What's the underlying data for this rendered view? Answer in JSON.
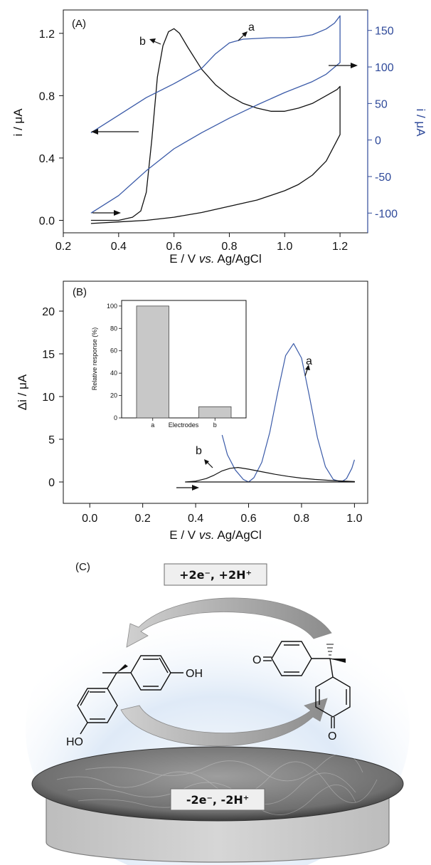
{
  "chart_data": [
    {
      "panel": "(A)",
      "type": "line",
      "xlabel_parts": [
        "E / V ",
        "vs.",
        " Ag/AgCl"
      ],
      "ylabel": "i / μA",
      "ylabel_right": "i / μA",
      "xlim": [
        0.2,
        1.3
      ],
      "ylim": [
        -0.08,
        1.35
      ],
      "ylim_right": [
        -127,
        178
      ],
      "xticks": [
        "0.2",
        "0.4",
        "0.6",
        "0.8",
        "1.0",
        "1.2"
      ],
      "yticks": [
        "0.0",
        "0.4",
        "0.8",
        "1.2"
      ],
      "yticks_right": [
        "-100",
        "-50",
        "0",
        "50",
        "100",
        "150"
      ],
      "grid": false,
      "series": [
        {
          "name": "b",
          "axis": "left",
          "color": "#111111",
          "x": [
            0.3,
            0.4,
            0.45,
            0.48,
            0.5,
            0.52,
            0.54,
            0.56,
            0.58,
            0.6,
            0.62,
            0.65,
            0.7,
            0.75,
            0.8,
            0.85,
            0.9,
            0.95,
            1.0,
            1.05,
            1.1,
            1.15,
            1.19,
            1.2,
            1.2,
            1.15,
            1.1,
            1.05,
            1.0,
            0.95,
            0.9,
            0.85,
            0.8,
            0.7,
            0.6,
            0.5,
            0.4,
            0.3
          ],
          "y": [
            0.0,
            0.0,
            0.02,
            0.06,
            0.18,
            0.52,
            0.92,
            1.12,
            1.21,
            1.23,
            1.2,
            1.11,
            0.97,
            0.87,
            0.8,
            0.75,
            0.72,
            0.7,
            0.7,
            0.72,
            0.75,
            0.8,
            0.84,
            0.86,
            0.55,
            0.38,
            0.29,
            0.23,
            0.19,
            0.16,
            0.13,
            0.11,
            0.09,
            0.05,
            0.02,
            0.0,
            -0.01,
            -0.02
          ]
        },
        {
          "name": "a",
          "axis": "right",
          "color": "#3a5aa8",
          "x": [
            0.3,
            0.4,
            0.5,
            0.6,
            0.7,
            0.75,
            0.8,
            0.85,
            0.9,
            0.95,
            1.0,
            1.05,
            1.1,
            1.15,
            1.18,
            1.2,
            1.2,
            1.15,
            1.1,
            1.0,
            0.9,
            0.8,
            0.7,
            0.6,
            0.5,
            0.4,
            0.3
          ],
          "y": [
            10,
            34,
            58,
            77,
            98,
            118,
            133,
            138,
            139,
            140,
            140,
            141,
            144,
            152,
            160,
            170,
            106,
            90,
            80,
            65,
            48,
            30,
            10,
            -12,
            -42,
            -76,
            -100
          ]
        }
      ],
      "annotations": [
        {
          "text": "a",
          "target": "series-a"
        },
        {
          "text": "b",
          "target": "series-b"
        }
      ]
    },
    {
      "panel": "(B)",
      "type": "line",
      "xlabel_parts": [
        "E / V ",
        "vs.",
        " Ag/AgCl"
      ],
      "ylabel": "Δi / μA",
      "xlim": [
        -0.1,
        1.05
      ],
      "ylim": [
        -2.5,
        23.5
      ],
      "xticks": [
        "0.0",
        "0.2",
        "0.4",
        "0.6",
        "0.8",
        "1.0"
      ],
      "yticks": [
        "0",
        "5",
        "10",
        "15",
        "20"
      ],
      "grid": false,
      "series": [
        {
          "name": "a",
          "color": "#3a5aa8",
          "x": [
            0.5,
            0.52,
            0.55,
            0.58,
            0.6,
            0.62,
            0.65,
            0.68,
            0.71,
            0.74,
            0.77,
            0.8,
            0.83,
            0.86,
            0.89,
            0.92,
            0.95,
            0.97,
            0.99,
            1.0
          ],
          "y": [
            5.5,
            3.2,
            1.4,
            0.3,
            0.0,
            0.5,
            2.3,
            5.8,
            10.5,
            14.8,
            16.2,
            14.5,
            10.0,
            5.2,
            1.8,
            0.3,
            0.0,
            0.4,
            1.6,
            2.6
          ]
        },
        {
          "name": "b",
          "color": "#111111",
          "x": [
            0.36,
            0.4,
            0.44,
            0.47,
            0.5,
            0.53,
            0.56,
            0.6,
            0.65,
            0.7,
            0.75,
            0.8,
            0.85,
            0.9,
            0.95,
            1.0,
            1.0,
            0.9,
            0.8,
            0.7,
            0.6,
            0.5,
            0.4,
            0.36
          ],
          "y": [
            0.0,
            0.1,
            0.4,
            0.8,
            1.3,
            1.6,
            1.7,
            1.5,
            1.2,
            0.9,
            0.65,
            0.45,
            0.3,
            0.2,
            0.12,
            0.05,
            0.0,
            0.0,
            0.0,
            0.0,
            0.0,
            0.0,
            0.0,
            0.0
          ]
        }
      ],
      "annotations": [
        {
          "text": "a",
          "target": "series-a"
        },
        {
          "text": "b",
          "target": "series-b"
        }
      ],
      "inset": {
        "type": "bar",
        "categories": [
          "a",
          "b"
        ],
        "values": [
          100,
          10
        ],
        "xlabel": "Electrodes",
        "ylabel": "Relative response (%)",
        "ylim": [
          0,
          105
        ],
        "yticks": [
          "0",
          "20",
          "40",
          "60",
          "80",
          "100"
        ],
        "bar_color": "#c8c8c8"
      }
    }
  ],
  "scheme": {
    "panel": "(C)",
    "reduction_label": "+2e⁻, +2H⁺",
    "oxidation_label": "-2e⁻, -2H⁺",
    "left_oh_top": "OH",
    "left_oh_bottom": "HO",
    "right_o_top": "O",
    "right_o_bottom": "O"
  },
  "colors": {
    "ink": "#111111",
    "accent_blue": "#2f4a9a",
    "glow": "#c9dcf2",
    "electrode_side": "#cccccc"
  }
}
